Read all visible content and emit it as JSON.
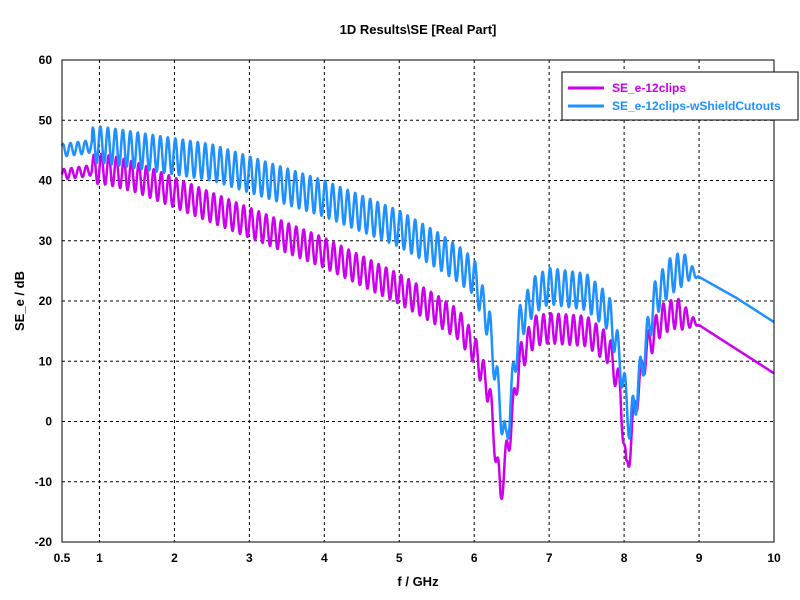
{
  "chart_data": {
    "type": "line",
    "title": "1D Results\\SE [Real Part]",
    "xlabel": "f / GHz",
    "ylabel": "SE_e / dB",
    "xlim": [
      0.5,
      10
    ],
    "ylim": [
      -20,
      60
    ],
    "x_ticks": [
      0.5,
      1,
      2,
      3,
      4,
      5,
      6,
      7,
      8,
      9,
      10
    ],
    "y_ticks": [
      -20,
      -10,
      0,
      10,
      20,
      30,
      40,
      50,
      60
    ],
    "grid": true,
    "legend_position": "top-right",
    "series": [
      {
        "name": "SE_e-12clips",
        "color": "#cc00ee",
        "oscillation_amplitude_db": 2.5,
        "oscillation_period_ghz": 0.1,
        "envelope": [
          [
            0.5,
            41
          ],
          [
            0.8,
            41.5
          ],
          [
            1.0,
            42
          ],
          [
            1.2,
            41.5
          ],
          [
            1.5,
            40.5
          ],
          [
            2.0,
            38
          ],
          [
            2.5,
            35.5
          ],
          [
            3.0,
            33
          ],
          [
            3.5,
            30.5
          ],
          [
            4.0,
            28
          ],
          [
            4.5,
            25
          ],
          [
            5.0,
            22
          ],
          [
            5.5,
            18.5
          ],
          [
            5.8,
            16
          ],
          [
            6.0,
            12
          ],
          [
            6.2,
            5
          ],
          [
            6.35,
            -12
          ],
          [
            6.5,
            0
          ],
          [
            6.6,
            10
          ],
          [
            6.8,
            15
          ],
          [
            7.0,
            15.5
          ],
          [
            7.5,
            15
          ],
          [
            7.8,
            12
          ],
          [
            7.95,
            5
          ],
          [
            8.03,
            -9
          ],
          [
            8.15,
            3
          ],
          [
            8.3,
            12
          ],
          [
            8.5,
            17
          ],
          [
            8.7,
            18
          ],
          [
            9.0,
            16
          ],
          [
            9.5,
            12
          ],
          [
            10.0,
            8
          ]
        ]
      },
      {
        "name": "SE_e-12clips-wShieldCutouts",
        "color": "#1e90ff",
        "oscillation_amplitude_db": 3,
        "oscillation_period_ghz": 0.1,
        "envelope": [
          [
            0.5,
            45
          ],
          [
            0.8,
            45.5
          ],
          [
            1.0,
            46
          ],
          [
            1.5,
            45
          ],
          [
            2.0,
            44
          ],
          [
            2.5,
            43
          ],
          [
            3.0,
            41
          ],
          [
            3.5,
            39
          ],
          [
            4.0,
            37
          ],
          [
            4.5,
            34.5
          ],
          [
            5.0,
            32
          ],
          [
            5.5,
            28.5
          ],
          [
            5.8,
            26
          ],
          [
            6.0,
            24
          ],
          [
            6.2,
            16
          ],
          [
            6.42,
            -4
          ],
          [
            6.6,
            16
          ],
          [
            6.8,
            21
          ],
          [
            7.0,
            22.5
          ],
          [
            7.5,
            21.5
          ],
          [
            7.8,
            18
          ],
          [
            7.95,
            10
          ],
          [
            8.08,
            -1
          ],
          [
            8.25,
            10
          ],
          [
            8.4,
            20
          ],
          [
            8.6,
            24
          ],
          [
            8.8,
            25.5
          ],
          [
            9.0,
            24
          ],
          [
            9.5,
            20.5
          ],
          [
            10.0,
            16.5
          ]
        ]
      }
    ]
  }
}
